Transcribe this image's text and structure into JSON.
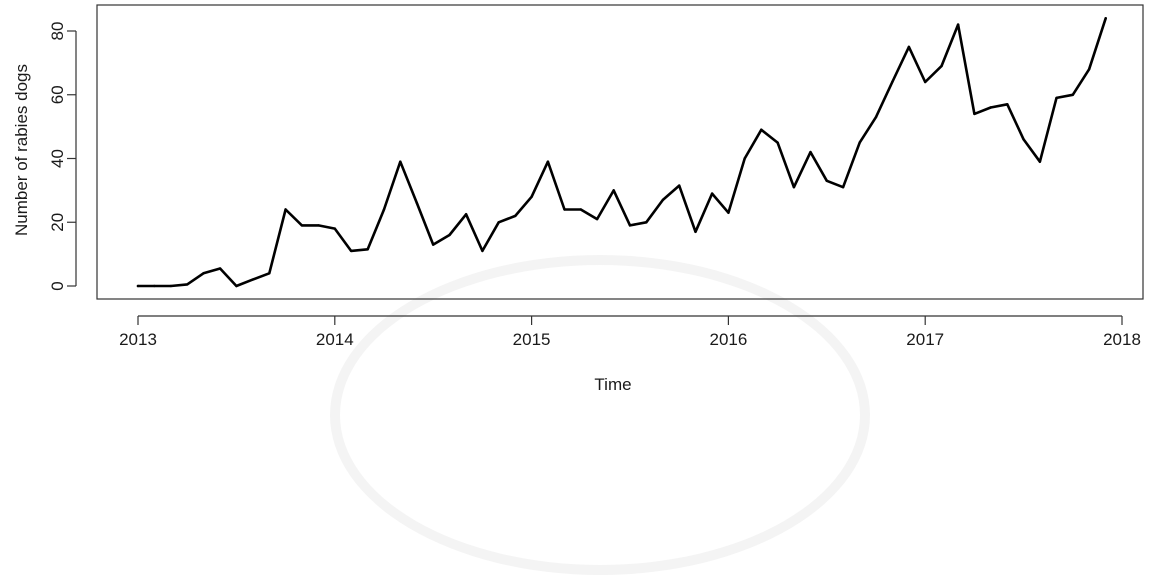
{
  "chart_data": {
    "type": "line",
    "xlabel": "Time",
    "ylabel": "Number of rabies dogs",
    "xlim": [
      2013,
      2018
    ],
    "ylim": [
      0,
      84
    ],
    "x_ticks": [
      "2013",
      "2014",
      "2015",
      "2016",
      "2017",
      "2018"
    ],
    "y_ticks": [
      "0",
      "20",
      "40",
      "60",
      "80"
    ],
    "grid": false,
    "series": [
      {
        "color": "#000000",
        "x": [
          2013.0,
          2013.083,
          2013.167,
          2013.25,
          2013.333,
          2013.417,
          2013.5,
          2013.583,
          2013.667,
          2013.75,
          2013.833,
          2013.917,
          2014.0,
          2014.083,
          2014.167,
          2014.25,
          2014.333,
          2014.417,
          2014.5,
          2014.583,
          2014.667,
          2014.75,
          2014.833,
          2014.917,
          2015.0,
          2015.083,
          2015.167,
          2015.25,
          2015.333,
          2015.417,
          2015.5,
          2015.583,
          2015.667,
          2015.75,
          2015.833,
          2015.917,
          2016.0,
          2016.083,
          2016.167,
          2016.25,
          2016.333,
          2016.417,
          2016.5,
          2016.583,
          2016.667,
          2016.75,
          2016.833,
          2016.917,
          2017.0,
          2017.083,
          2017.167,
          2017.25,
          2017.333,
          2017.417,
          2017.5,
          2017.583,
          2017.667,
          2017.75,
          2017.833,
          2017.917
        ],
        "values": [
          0,
          0,
          0,
          0.5,
          4,
          5.5,
          0,
          2,
          4,
          24,
          19,
          19,
          18,
          11,
          11.5,
          24,
          39,
          26,
          13,
          16,
          22.5,
          11,
          20,
          22,
          28,
          39,
          24,
          24,
          21,
          30,
          19,
          20,
          27,
          31.5,
          17,
          29,
          23,
          40,
          49,
          45,
          31,
          42,
          33,
          31,
          45,
          53,
          64,
          75,
          64,
          69,
          82,
          54,
          56,
          57,
          46,
          39,
          59,
          60,
          68,
          84
        ]
      }
    ]
  }
}
